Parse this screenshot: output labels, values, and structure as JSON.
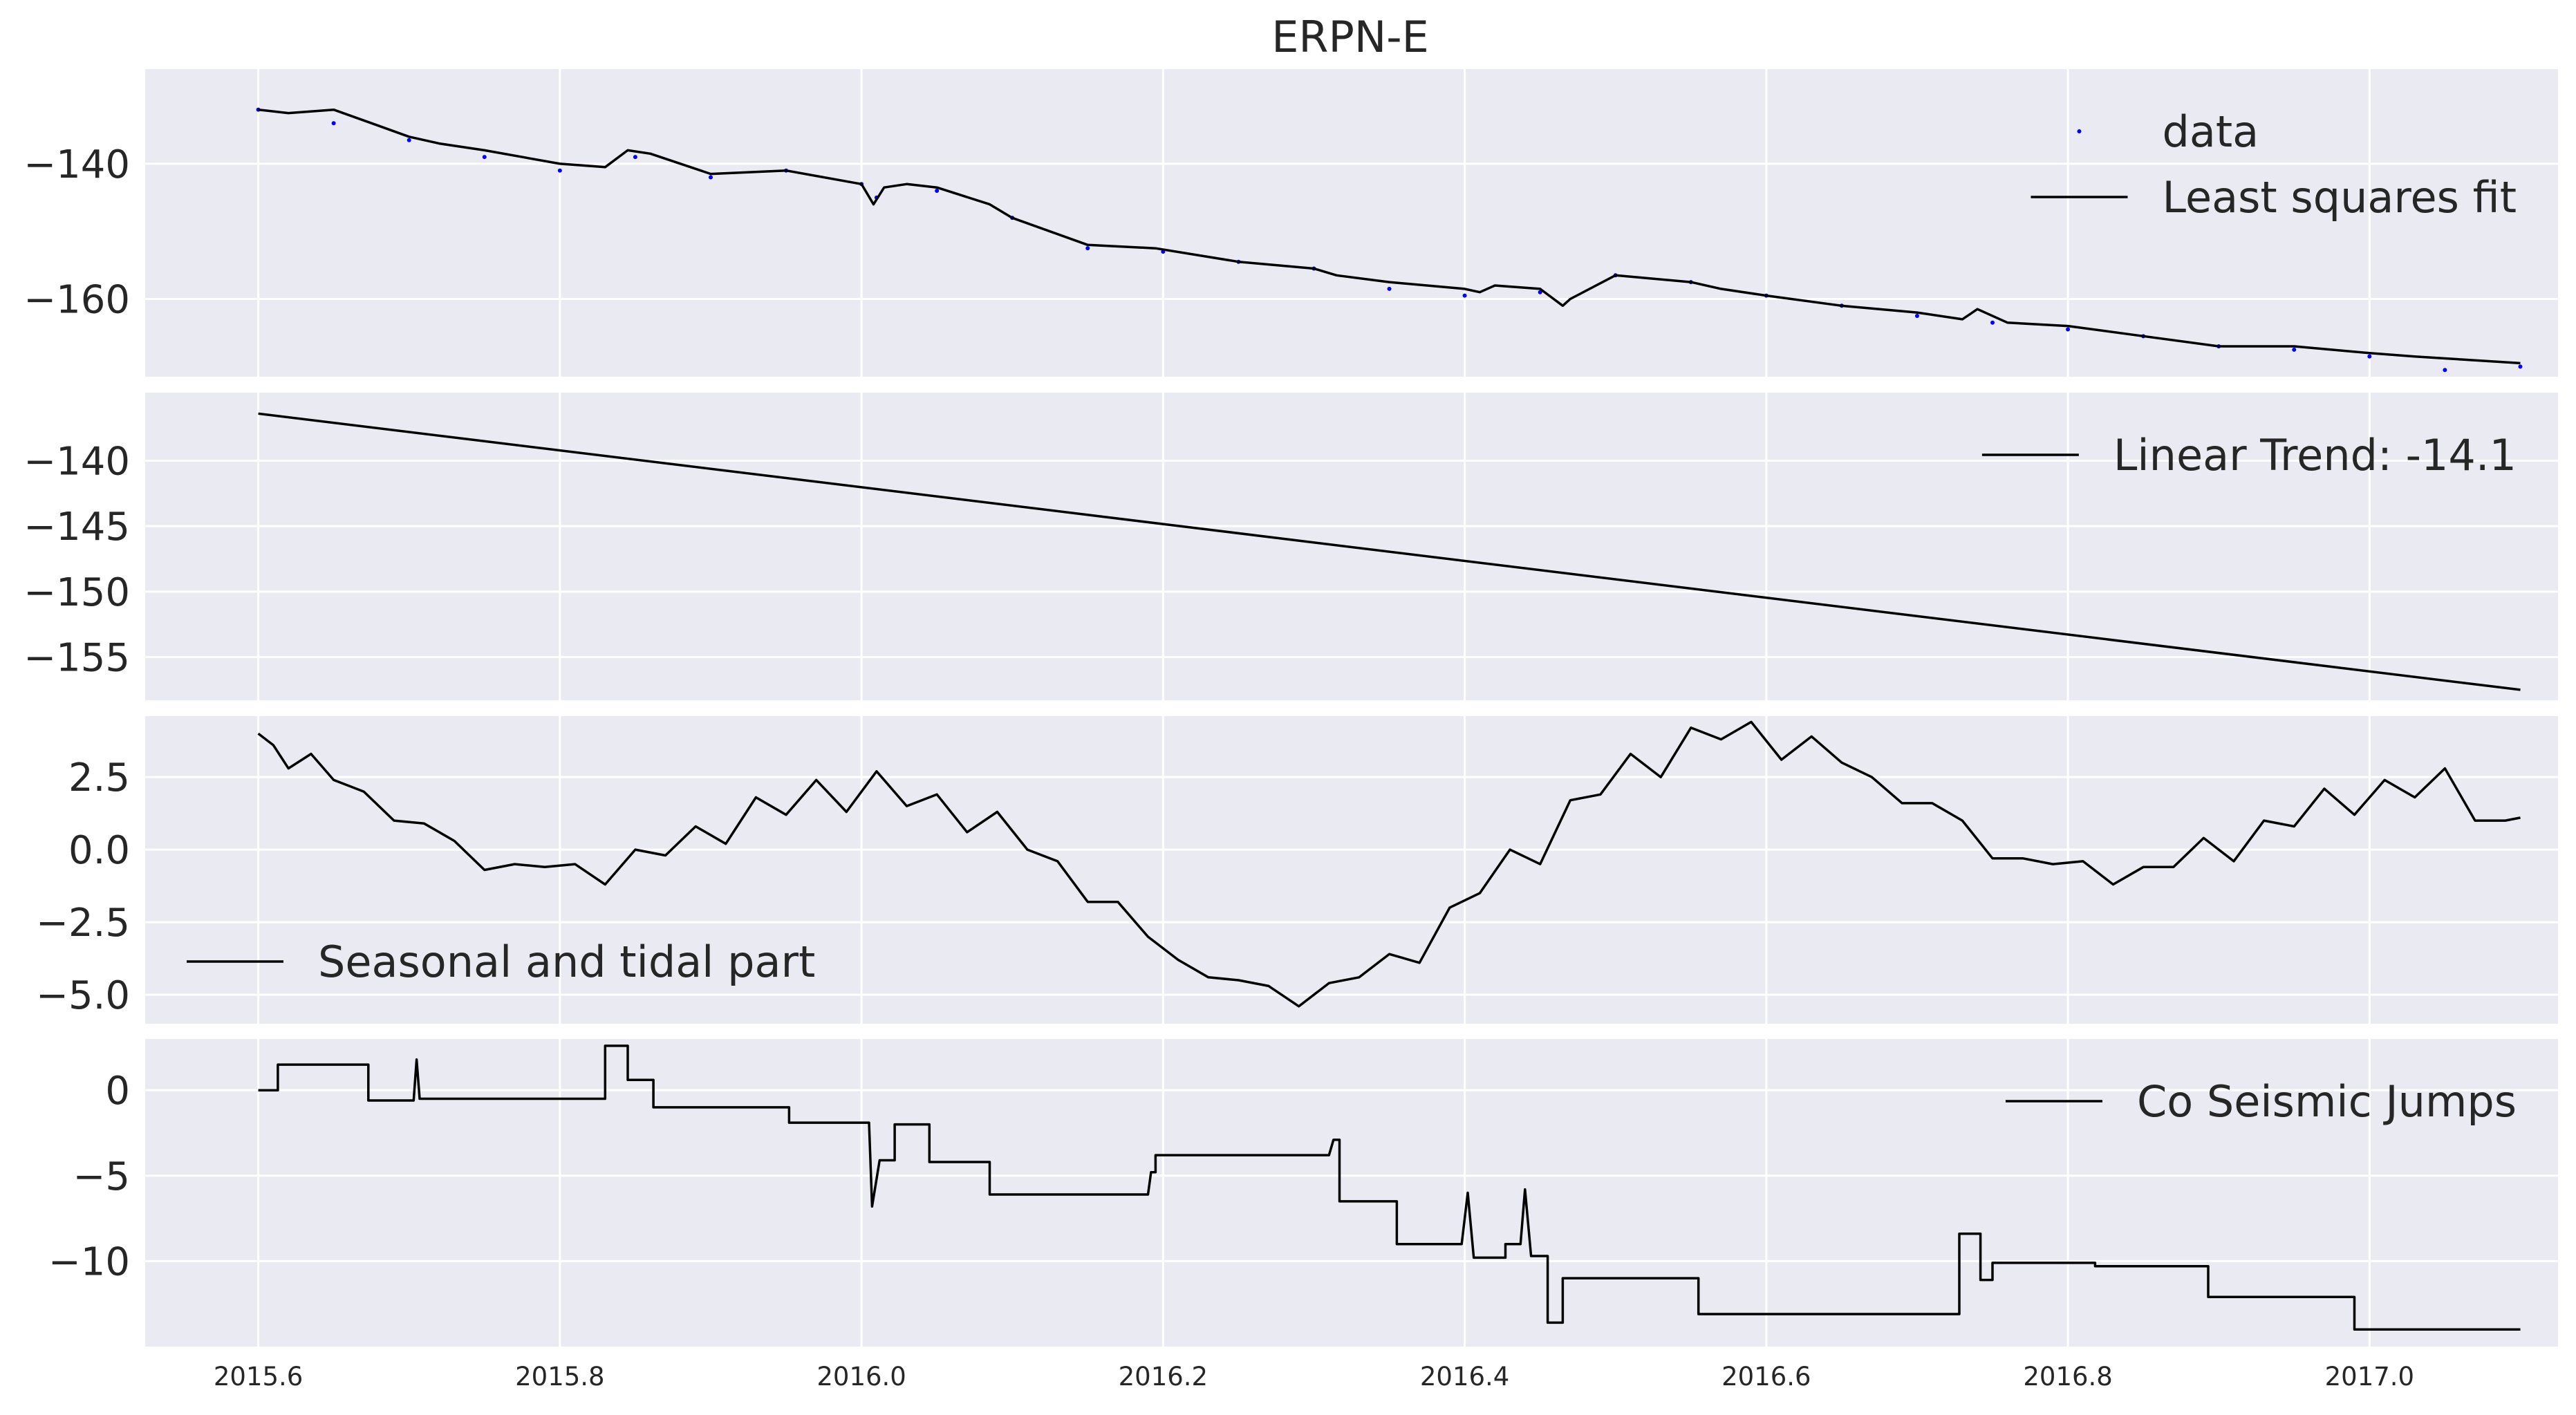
{
  "title": "ERPN-E",
  "colors": {
    "background": "#eaeaf2",
    "grid": "#ffffff",
    "line": "#000000",
    "data_points": "#0000ff"
  },
  "x_ticks": [
    2015.6,
    2015.8,
    2016.0,
    2016.2,
    2016.4,
    2016.6,
    2016.8,
    2017.0
  ],
  "x_tick_labels": [
    "2015.6",
    "2015.8",
    "2016.0",
    "2016.2",
    "2016.4",
    "2016.6",
    "2016.8",
    "2017.0"
  ],
  "chart_data": [
    {
      "type": "line",
      "legend": [
        "data",
        "Least squares fit"
      ],
      "legend_position": "top-right",
      "xlim": [
        2015.525,
        2017.125
      ],
      "ylim": [
        -171.5,
        -126.0
      ],
      "y_ticks": [
        -140,
        -160
      ],
      "y_tick_labels": [
        "−140",
        "−160"
      ],
      "grid": true,
      "series": [
        {
          "name": "data",
          "style": "points",
          "color": "#0000ff",
          "x": [
            2015.6,
            2015.65,
            2015.7,
            2015.75,
            2015.8,
            2015.85,
            2015.9,
            2015.95,
            2016.0,
            2016.01,
            2016.05,
            2016.1,
            2016.15,
            2016.2,
            2016.25,
            2016.3,
            2016.35,
            2016.4,
            2016.45,
            2016.5,
            2016.55,
            2016.6,
            2016.65,
            2016.7,
            2016.75,
            2016.8,
            2016.85,
            2016.9,
            2016.95,
            2017.0,
            2017.05,
            2017.1
          ],
          "y": [
            -132.0,
            -134.0,
            -136.5,
            -139.0,
            -141.0,
            -139.0,
            -142.0,
            -141.0,
            -143.0,
            -145.0,
            -144.0,
            -148.0,
            -152.5,
            -153.0,
            -154.5,
            -155.5,
            -158.5,
            -159.5,
            -159.0,
            -156.5,
            -157.5,
            -159.5,
            -161.0,
            -162.5,
            -163.5,
            -164.5,
            -165.5,
            -167.0,
            -167.5,
            -168.5,
            -170.5,
            -170.0
          ]
        },
        {
          "name": "Least squares fit",
          "style": "line",
          "color": "#000000",
          "x": [
            2015.6,
            2015.62,
            2015.65,
            2015.675,
            2015.7,
            2015.72,
            2015.75,
            2015.8,
            2015.83,
            2015.845,
            2015.86,
            2015.9,
            2015.95,
            2016.0,
            2016.008,
            2016.015,
            2016.03,
            2016.05,
            2016.085,
            2016.1,
            2016.15,
            2016.195,
            2016.25,
            2016.3,
            2016.315,
            2016.35,
            2016.4,
            2016.41,
            2016.42,
            2016.45,
            2016.465,
            2016.47,
            2016.5,
            2016.55,
            2016.57,
            2016.6,
            2016.65,
            2016.7,
            2016.73,
            2016.74,
            2016.76,
            2016.8,
            2016.85,
            2016.9,
            2016.95,
            2017.0,
            2017.03,
            2017.1
          ],
          "y": [
            -132.0,
            -132.5,
            -132.0,
            -134.0,
            -136.0,
            -137.0,
            -138.0,
            -140.0,
            -140.5,
            -138.0,
            -138.5,
            -141.5,
            -141.0,
            -143.0,
            -146.0,
            -143.5,
            -143.0,
            -143.5,
            -146.0,
            -148.0,
            -152.0,
            -152.5,
            -154.5,
            -155.5,
            -156.5,
            -157.5,
            -158.5,
            -159.0,
            -158.0,
            -158.5,
            -161.0,
            -160.0,
            -156.5,
            -157.5,
            -158.5,
            -159.5,
            -161.0,
            -162.0,
            -163.0,
            -161.5,
            -163.5,
            -164.0,
            -165.5,
            -167.0,
            -167.0,
            -168.0,
            -168.5,
            -169.5
          ]
        }
      ]
    },
    {
      "type": "line",
      "legend": [
        "Linear Trend: -14.1"
      ],
      "legend_position": "top-right",
      "xlim": [
        2015.525,
        2017.125
      ],
      "ylim": [
        -158.3,
        -134.8
      ],
      "y_ticks": [
        -140,
        -145,
        -150,
        -155
      ],
      "y_tick_labels": [
        "−140",
        "−145",
        "−150",
        "−155"
      ],
      "grid": true,
      "series": [
        {
          "name": "Linear Trend: -14.1",
          "style": "line",
          "color": "#000000",
          "x": [
            2015.6,
            2017.1
          ],
          "y": [
            -136.4,
            -157.5
          ]
        }
      ]
    },
    {
      "type": "line",
      "legend": [
        "Seasonal and tidal part"
      ],
      "legend_position": "bottom-left",
      "xlim": [
        2015.525,
        2017.125
      ],
      "ylim": [
        -6.0,
        4.6
      ],
      "y_ticks": [
        2.5,
        0.0,
        -2.5,
        -5.0
      ],
      "y_tick_labels": [
        "2.5",
        "0.0",
        "−2.5",
        "−5.0"
      ],
      "grid": true,
      "series": [
        {
          "name": "Seasonal and tidal part",
          "style": "line",
          "color": "#000000",
          "x": [
            2015.6,
            2015.61,
            2015.62,
            2015.635,
            2015.65,
            2015.67,
            2015.69,
            2015.71,
            2015.73,
            2015.75,
            2015.77,
            2015.79,
            2015.81,
            2015.83,
            2015.85,
            2015.87,
            2015.89,
            2015.91,
            2015.93,
            2015.95,
            2015.97,
            2015.99,
            2016.01,
            2016.03,
            2016.05,
            2016.07,
            2016.09,
            2016.11,
            2016.13,
            2016.15,
            2016.17,
            2016.19,
            2016.21,
            2016.23,
            2016.25,
            2016.27,
            2016.29,
            2016.31,
            2016.33,
            2016.35,
            2016.37,
            2016.39,
            2016.41,
            2016.43,
            2016.45,
            2016.47,
            2016.49,
            2016.51,
            2016.53,
            2016.55,
            2016.57,
            2016.59,
            2016.61,
            2016.63,
            2016.65,
            2016.67,
            2016.69,
            2016.71,
            2016.73,
            2016.75,
            2016.77,
            2016.79,
            2016.81,
            2016.83,
            2016.85,
            2016.87,
            2016.89,
            2016.91,
            2016.93,
            2016.95,
            2016.97,
            2016.99,
            2017.01,
            2017.03,
            2017.05,
            2017.07,
            2017.09,
            2017.1
          ],
          "y": [
            4.0,
            3.6,
            2.8,
            3.3,
            2.4,
            2.0,
            1.0,
            0.9,
            0.3,
            -0.7,
            -0.5,
            -0.6,
            -0.5,
            -1.2,
            0.0,
            -0.2,
            0.8,
            0.2,
            1.8,
            1.2,
            2.4,
            1.3,
            2.7,
            1.5,
            1.9,
            0.6,
            1.3,
            0.0,
            -0.4,
            -1.8,
            -1.8,
            -3.0,
            -3.8,
            -4.4,
            -4.5,
            -4.7,
            -5.4,
            -4.6,
            -4.4,
            -3.6,
            -3.9,
            -2.0,
            -1.5,
            0.0,
            -0.5,
            1.7,
            1.9,
            3.3,
            2.5,
            4.2,
            3.8,
            4.4,
            3.1,
            3.9,
            3.0,
            2.5,
            1.6,
            1.6,
            1.0,
            -0.3,
            -0.3,
            -0.5,
            -0.4,
            -1.2,
            -0.6,
            -0.6,
            0.4,
            -0.4,
            1.0,
            0.8,
            2.1,
            1.2,
            2.4,
            1.8,
            2.8,
            1.0,
            1.0,
            1.1
          ]
        }
      ]
    },
    {
      "type": "line",
      "legend": [
        "Co Seismic Jumps"
      ],
      "legend_position": "top-right",
      "xlim": [
        2015.525,
        2017.125
      ],
      "ylim": [
        -15.0,
        3.0
      ],
      "y_ticks": [
        0,
        -5,
        -10
      ],
      "y_tick_labels": [
        "0",
        "−5",
        "−10"
      ],
      "grid": true,
      "series": [
        {
          "name": "Co Seismic Jumps",
          "style": "step",
          "color": "#000000",
          "x": [
            2015.6,
            2015.613,
            2015.613,
            2015.673,
            2015.673,
            2015.703,
            2015.705,
            2015.707,
            2015.707,
            2015.83,
            2015.83,
            2015.845,
            2015.845,
            2015.862,
            2015.862,
            2015.952,
            2015.952,
            2016.005,
            2016.007,
            2016.012,
            2016.012,
            2016.022,
            2016.022,
            2016.045,
            2016.045,
            2016.085,
            2016.085,
            2016.19,
            2016.192,
            2016.195,
            2016.195,
            2016.31,
            2016.313,
            2016.317,
            2016.317,
            2016.355,
            2016.355,
            2016.398,
            2016.402,
            2016.406,
            2016.406,
            2016.427,
            2016.427,
            2016.437,
            2016.44,
            2016.444,
            2016.444,
            2016.455,
            2016.455,
            2016.465,
            2016.465,
            2016.555,
            2016.555,
            2016.728,
            2016.728,
            2016.742,
            2016.742,
            2016.75,
            2016.75,
            2016.818,
            2016.818,
            2016.893,
            2016.893,
            2016.99,
            2016.99,
            2017.1
          ],
          "y": [
            0.0,
            0.0,
            1.5,
            1.5,
            -0.6,
            -0.6,
            1.8,
            -0.5,
            -0.5,
            -0.5,
            2.6,
            2.6,
            0.6,
            0.6,
            -1.0,
            -1.0,
            -1.9,
            -1.9,
            -6.8,
            -4.1,
            -4.1,
            -4.1,
            -2.0,
            -2.0,
            -4.2,
            -4.2,
            -6.1,
            -6.1,
            -4.8,
            -4.8,
            -3.8,
            -3.8,
            -2.9,
            -2.9,
            -6.5,
            -6.5,
            -9.0,
            -9.0,
            -6.0,
            -9.8,
            -9.8,
            -9.8,
            -9.0,
            -9.0,
            -5.8,
            -9.7,
            -9.7,
            -9.7,
            -13.6,
            -13.6,
            -11.0,
            -11.0,
            -13.1,
            -13.1,
            -8.4,
            -8.4,
            -11.1,
            -11.1,
            -10.1,
            -10.1,
            -10.3,
            -10.3,
            -12.1,
            -12.1,
            -14.0,
            -14.0
          ]
        }
      ]
    }
  ]
}
